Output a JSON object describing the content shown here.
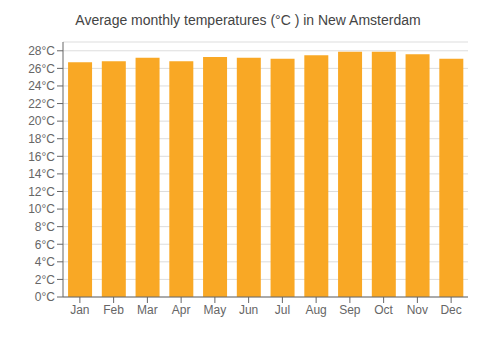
{
  "chart_data": {
    "type": "bar",
    "title": "Average monthly temperatures (°C ) in New Amsterdam",
    "categories": [
      "Jan",
      "Feb",
      "Mar",
      "Apr",
      "May",
      "Jun",
      "Jul",
      "Aug",
      "Sep",
      "Oct",
      "Nov",
      "Dec"
    ],
    "values": [
      26.7,
      26.8,
      27.2,
      26.8,
      27.3,
      27.2,
      27.1,
      27.5,
      27.9,
      27.9,
      27.6,
      27.1
    ],
    "color": "#F9A825",
    "ylim": [
      0,
      29
    ],
    "yticks": [
      {
        "value": 0,
        "label": "0°C"
      },
      {
        "value": 2,
        "label": "2°C"
      },
      {
        "value": 4,
        "label": "4°C"
      },
      {
        "value": 6,
        "label": "6°C"
      },
      {
        "value": 8,
        "label": "8°C"
      },
      {
        "value": 10,
        "label": "10°C"
      },
      {
        "value": 12,
        "label": "12°C"
      },
      {
        "value": 14,
        "label": "14°C"
      },
      {
        "value": 16,
        "label": "16°C"
      },
      {
        "value": 18,
        "label": "18°C"
      },
      {
        "value": 20,
        "label": "20°C"
      },
      {
        "value": 22,
        "label": "22°C"
      },
      {
        "value": 24,
        "label": "24°C"
      },
      {
        "value": 26,
        "label": "26°C"
      },
      {
        "value": 28,
        "label": "28°C"
      }
    ],
    "grid": true
  }
}
